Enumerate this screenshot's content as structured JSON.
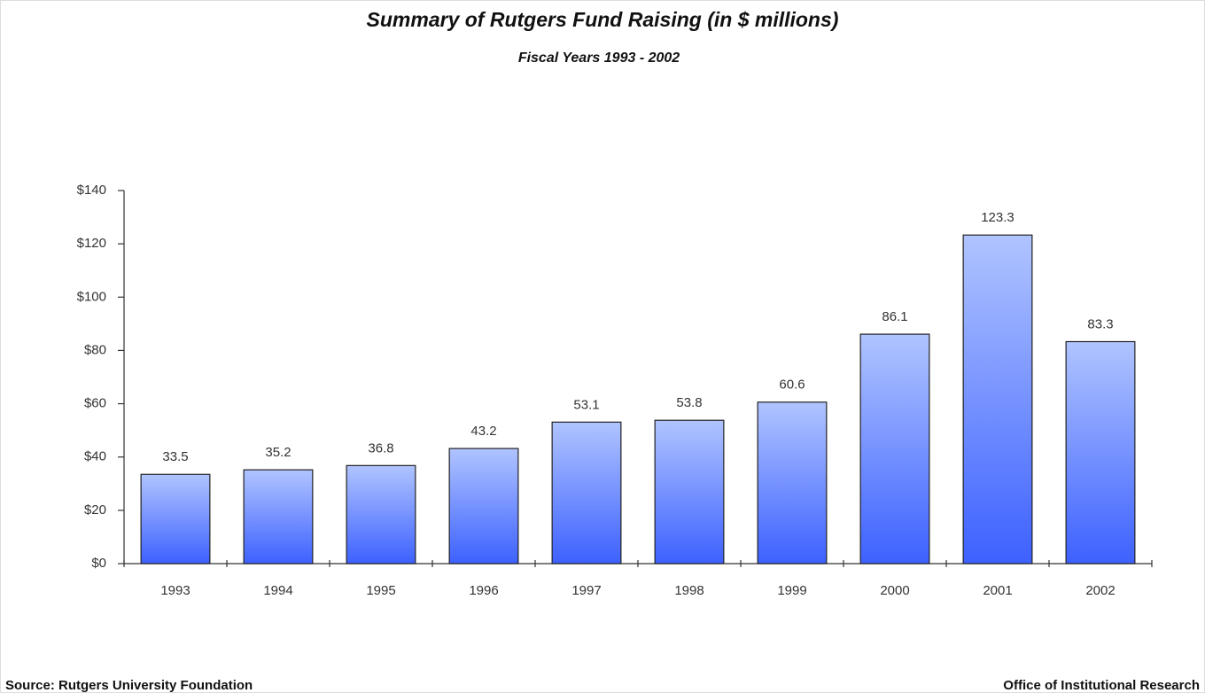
{
  "chart_data": {
    "type": "bar",
    "title": "Summary of Rutgers Fund Raising (in $ millions)",
    "subtitle": "Fiscal Years 1993 - 2002",
    "categories": [
      "1993",
      "1994",
      "1995",
      "1996",
      "1997",
      "1998",
      "1999",
      "2000",
      "2001",
      "2002"
    ],
    "values": [
      33.5,
      35.2,
      36.8,
      43.2,
      53.1,
      53.8,
      60.6,
      86.1,
      123.3,
      83.3
    ],
    "color": "#3d61ff",
    "ylim": [
      0,
      140
    ],
    "yticks": [
      {
        "value": 0,
        "label": "$0"
      },
      {
        "value": 20,
        "label": "$20"
      },
      {
        "value": 40,
        "label": "$40"
      },
      {
        "value": 60,
        "label": "$60"
      },
      {
        "value": 80,
        "label": "$80"
      },
      {
        "value": 100,
        "label": "$100"
      },
      {
        "value": 120,
        "label": "$120"
      },
      {
        "value": 140,
        "label": "$140"
      }
    ],
    "grid": false,
    "source": "Source: Rutgers University Foundation",
    "credit": "Office of Institutional Research"
  }
}
